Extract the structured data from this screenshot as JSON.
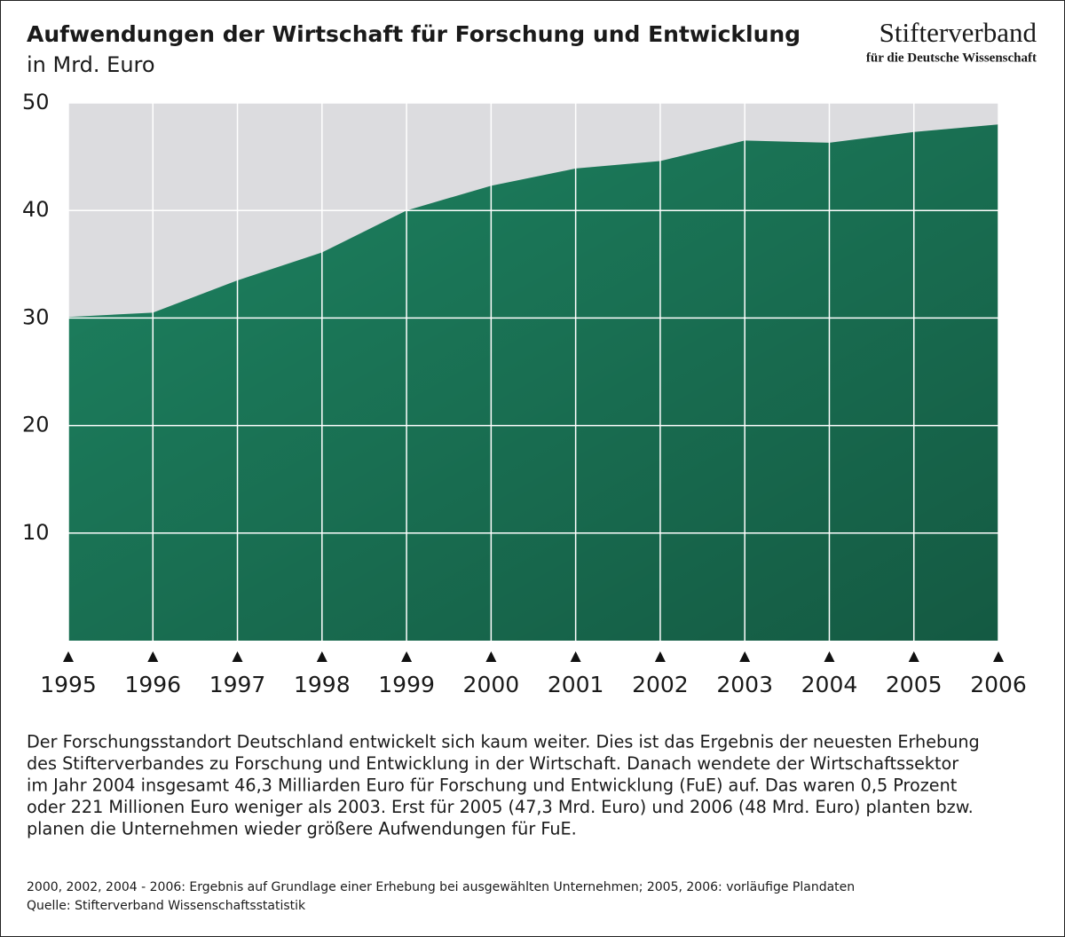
{
  "chart_data": {
    "type": "area",
    "title": "Aufwendungen der Wirtschaft für Forschung und Entwicklung",
    "subtitle": "in Mrd. Euro",
    "x": [
      1995,
      1996,
      1997,
      1998,
      1999,
      2000,
      2001,
      2002,
      2003,
      2004,
      2005,
      2006
    ],
    "values": [
      30.1,
      30.5,
      33.5,
      36.1,
      40.0,
      42.3,
      43.9,
      44.6,
      46.5,
      46.3,
      47.3,
      48.0
    ],
    "color": "#1f8a66",
    "xlim": [
      1995,
      2006
    ],
    "xticks": [
      1995,
      1996,
      1997,
      1998,
      1999,
      2000,
      2001,
      2002,
      2003,
      2004,
      2005,
      2006
    ],
    "ylim": [
      0,
      50
    ],
    "yticks": [
      10,
      20,
      30,
      40,
      50
    ],
    "grid": true
  },
  "logo": {
    "name": "Stifterverband",
    "tagline": "für die Deutsche Wissenschaft"
  },
  "description": [
    "Der Forschungsstandort Deutschland entwickelt sich kaum weiter. Dies ist das Ergebnis der neuesten Erhebung",
    "des Stifterverbandes zu Forschung und Entwicklung in der Wirtschaft. Danach wendete der Wirtschaftssektor",
    "im Jahr 2004 insgesamt 46,3 Milliarden Euro für Forschung und Entwicklung (FuE) auf. Das waren 0,5 Prozent",
    "oder 221 Millionen Euro weniger als 2003. Erst für 2005 (47,3 Mrd. Euro) und 2006 (48 Mrd. Euro) planten bzw.",
    "planen die Unternehmen wieder größere Aufwendungen für FuE."
  ],
  "notes": [
    "2000, 2002, 2004 - 2006: Ergebnis auf Grundlage einer Erhebung bei ausgewählten Unternehmen; 2005, 2006: vorläufige Plandaten",
    "Quelle: Stifterverband Wissenschaftsstatistik"
  ]
}
